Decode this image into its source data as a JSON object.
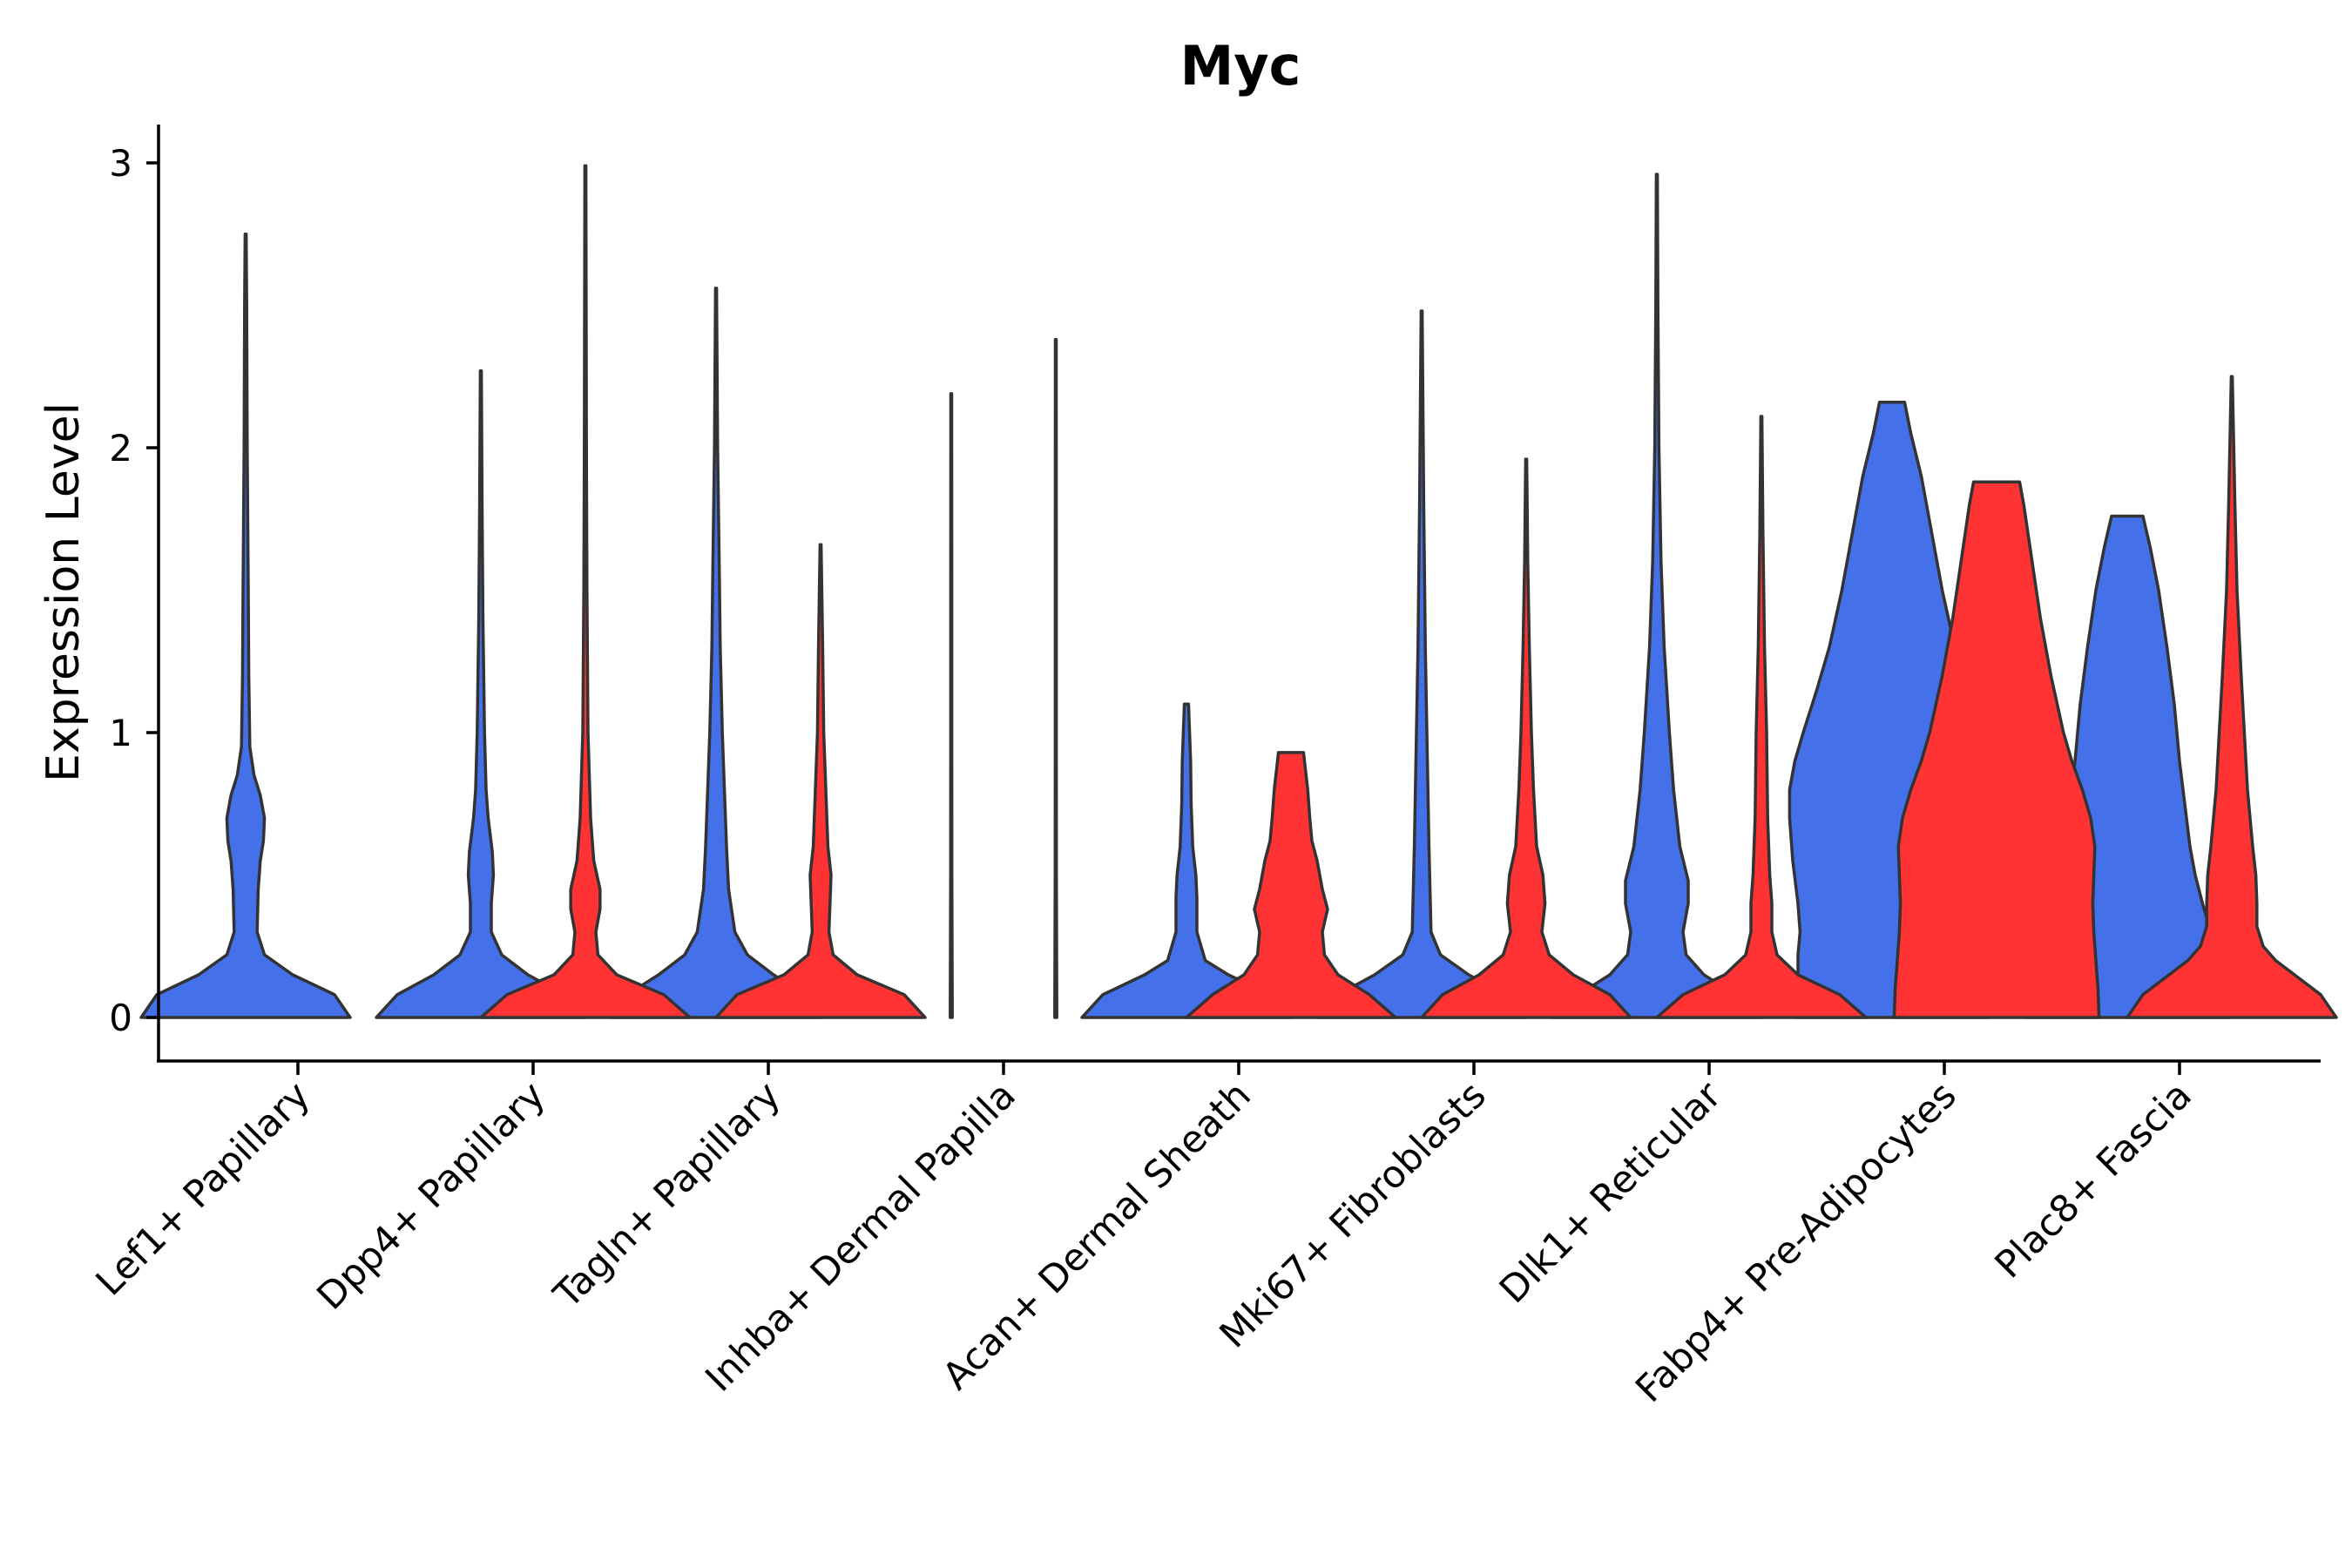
{
  "chart_data": {
    "type": "violin",
    "title": "Myc",
    "xlabel": "",
    "ylabel": "Expression Level",
    "ylim": [
      -0.15,
      3.15
    ],
    "yticks": [
      0,
      1,
      2,
      3
    ],
    "ytick_labels": [
      "0",
      "1",
      "2",
      "3"
    ],
    "legend": "none",
    "grid": false,
    "colors": {
      "group_a": "#4470EA",
      "group_b": "#FF3333",
      "outline": "#333333"
    },
    "categories": [
      "Lef1+ Papillary",
      "Dpp4+ Papillary",
      "Tagln+ Papillary",
      "Inhba+ Dermal Papilla",
      "Acan+ Dermal Sheath",
      "Mki67+ Fibroblasts",
      "Dlk1+ Reticular",
      "Fabp4+ Pre-Adipocytes",
      "Plac8+ Fascia"
    ],
    "series": [
      {
        "name": "group_a",
        "color": "#4470EA",
        "max_values": [
          2.75,
          2.27,
          2.56,
          2.19,
          1.1,
          2.48,
          2.96,
          2.16,
          1.76
        ],
        "profiles": [
          [
            [
              0,
              1.0
            ],
            [
              0.08,
              0.85
            ],
            [
              0.15,
              0.45
            ],
            [
              0.22,
              0.18
            ],
            [
              0.3,
              0.11
            ],
            [
              0.45,
              0.12
            ],
            [
              0.55,
              0.14
            ],
            [
              0.62,
              0.17
            ],
            [
              0.7,
              0.18
            ],
            [
              0.78,
              0.14
            ],
            [
              0.85,
              0.08
            ],
            [
              0.95,
              0.04
            ],
            [
              1.2,
              0.03
            ],
            [
              1.5,
              0.025
            ],
            [
              2.0,
              0.015
            ],
            [
              2.5,
              0.01
            ],
            [
              2.75,
              0.005
            ]
          ],
          [
            [
              0,
              1.0
            ],
            [
              0.08,
              0.8
            ],
            [
              0.15,
              0.45
            ],
            [
              0.22,
              0.2
            ],
            [
              0.3,
              0.1
            ],
            [
              0.4,
              0.1
            ],
            [
              0.5,
              0.12
            ],
            [
              0.58,
              0.11
            ],
            [
              0.7,
              0.07
            ],
            [
              0.8,
              0.05
            ],
            [
              1.0,
              0.035
            ],
            [
              1.4,
              0.02
            ],
            [
              1.8,
              0.012
            ],
            [
              2.27,
              0.005
            ]
          ],
          [
            [
              0,
              1.0
            ],
            [
              0.08,
              0.85
            ],
            [
              0.15,
              0.55
            ],
            [
              0.22,
              0.3
            ],
            [
              0.3,
              0.18
            ],
            [
              0.45,
              0.12
            ],
            [
              0.6,
              0.1
            ],
            [
              0.8,
              0.08
            ],
            [
              1.0,
              0.06
            ],
            [
              1.3,
              0.04
            ],
            [
              1.6,
              0.03
            ],
            [
              2.0,
              0.015
            ],
            [
              2.56,
              0.005
            ]
          ],
          [
            [
              0,
              0.01
            ],
            [
              0.5,
              0.006
            ],
            [
              1.0,
              0.005
            ],
            [
              1.5,
              0.005
            ],
            [
              2.19,
              0.004
            ]
          ],
          [
            [
              0,
              1.0
            ],
            [
              0.08,
              0.8
            ],
            [
              0.15,
              0.4
            ],
            [
              0.2,
              0.18
            ],
            [
              0.3,
              0.1
            ],
            [
              0.42,
              0.1
            ],
            [
              0.5,
              0.09
            ],
            [
              0.6,
              0.06
            ],
            [
              0.75,
              0.045
            ],
            [
              0.9,
              0.04
            ],
            [
              1.1,
              0.02
            ]
          ],
          [
            [
              0,
              1.0
            ],
            [
              0.08,
              0.8
            ],
            [
              0.15,
              0.45
            ],
            [
              0.22,
              0.18
            ],
            [
              0.3,
              0.09
            ],
            [
              0.45,
              0.08
            ],
            [
              0.6,
              0.07
            ],
            [
              0.8,
              0.06
            ],
            [
              1.0,
              0.05
            ],
            [
              1.3,
              0.035
            ],
            [
              1.8,
              0.02
            ],
            [
              2.48,
              0.005
            ]
          ],
          [
            [
              0,
              1.0
            ],
            [
              0.08,
              0.75
            ],
            [
              0.15,
              0.45
            ],
            [
              0.22,
              0.28
            ],
            [
              0.3,
              0.25
            ],
            [
              0.4,
              0.3
            ],
            [
              0.48,
              0.3
            ],
            [
              0.6,
              0.22
            ],
            [
              0.8,
              0.16
            ],
            [
              1.0,
              0.12
            ],
            [
              1.3,
              0.07
            ],
            [
              1.6,
              0.04
            ],
            [
              2.0,
              0.02
            ],
            [
              2.5,
              0.01
            ],
            [
              2.96,
              0.005
            ]
          ],
          [
            [
              0,
              0.92
            ],
            [
              0.1,
              0.9
            ],
            [
              0.22,
              0.9
            ],
            [
              0.3,
              0.88
            ],
            [
              0.4,
              0.9
            ],
            [
              0.55,
              0.95
            ],
            [
              0.7,
              0.98
            ],
            [
              0.8,
              0.98
            ],
            [
              0.9,
              0.93
            ],
            [
              1.0,
              0.85
            ],
            [
              1.15,
              0.72
            ],
            [
              1.3,
              0.6
            ],
            [
              1.5,
              0.48
            ],
            [
              1.7,
              0.38
            ],
            [
              1.9,
              0.28
            ],
            [
              2.05,
              0.18
            ],
            [
              2.16,
              0.12
            ]
          ],
          [
            [
              0,
              0.98
            ],
            [
              0.1,
              0.95
            ],
            [
              0.2,
              0.9
            ],
            [
              0.3,
              0.8
            ],
            [
              0.4,
              0.72
            ],
            [
              0.5,
              0.65
            ],
            [
              0.6,
              0.6
            ],
            [
              0.75,
              0.55
            ],
            [
              0.9,
              0.5
            ],
            [
              1.1,
              0.45
            ],
            [
              1.3,
              0.38
            ],
            [
              1.5,
              0.3
            ],
            [
              1.65,
              0.22
            ],
            [
              1.76,
              0.15
            ]
          ]
        ]
      },
      {
        "name": "group_b",
        "color": "#FF3333",
        "max_values": [
          null,
          2.99,
          1.66,
          2.38,
          0.93,
          1.96,
          2.11,
          1.88,
          2.25
        ],
        "profiles": [
          null,
          [
            [
              0,
              1.0
            ],
            [
              0.08,
              0.75
            ],
            [
              0.15,
              0.3
            ],
            [
              0.22,
              0.12
            ],
            [
              0.3,
              0.1
            ],
            [
              0.38,
              0.14
            ],
            [
              0.45,
              0.14
            ],
            [
              0.55,
              0.08
            ],
            [
              0.7,
              0.05
            ],
            [
              1.0,
              0.025
            ],
            [
              1.5,
              0.015
            ],
            [
              2.0,
              0.01
            ],
            [
              2.99,
              0.005
            ]
          ],
          [
            [
              0,
              1.0
            ],
            [
              0.08,
              0.8
            ],
            [
              0.15,
              0.35
            ],
            [
              0.22,
              0.12
            ],
            [
              0.3,
              0.08
            ],
            [
              0.4,
              0.09
            ],
            [
              0.5,
              0.1
            ],
            [
              0.6,
              0.07
            ],
            [
              0.8,
              0.05
            ],
            [
              1.0,
              0.03
            ],
            [
              1.3,
              0.02
            ],
            [
              1.66,
              0.005
            ]
          ],
          [
            [
              0,
              0.01
            ],
            [
              0.5,
              0.006
            ],
            [
              1.0,
              0.005
            ],
            [
              1.5,
              0.005
            ],
            [
              2.38,
              0.004
            ]
          ],
          [
            [
              0,
              1.0
            ],
            [
              0.08,
              0.75
            ],
            [
              0.15,
              0.45
            ],
            [
              0.22,
              0.32
            ],
            [
              0.3,
              0.3
            ],
            [
              0.38,
              0.35
            ],
            [
              0.45,
              0.3
            ],
            [
              0.55,
              0.25
            ],
            [
              0.62,
              0.2
            ],
            [
              0.7,
              0.18
            ],
            [
              0.8,
              0.16
            ],
            [
              0.93,
              0.12
            ]
          ],
          [
            [
              0,
              1.0
            ],
            [
              0.08,
              0.8
            ],
            [
              0.15,
              0.45
            ],
            [
              0.22,
              0.22
            ],
            [
              0.3,
              0.15
            ],
            [
              0.4,
              0.18
            ],
            [
              0.5,
              0.16
            ],
            [
              0.6,
              0.1
            ],
            [
              0.8,
              0.07
            ],
            [
              1.0,
              0.05
            ],
            [
              1.3,
              0.03
            ],
            [
              1.6,
              0.015
            ],
            [
              1.96,
              0.005
            ]
          ],
          [
            [
              0,
              1.0
            ],
            [
              0.08,
              0.75
            ],
            [
              0.15,
              0.35
            ],
            [
              0.22,
              0.15
            ],
            [
              0.3,
              0.1
            ],
            [
              0.4,
              0.1
            ],
            [
              0.5,
              0.08
            ],
            [
              0.7,
              0.06
            ],
            [
              1.0,
              0.05
            ],
            [
              1.3,
              0.03
            ],
            [
              1.7,
              0.015
            ],
            [
              2.11,
              0.005
            ]
          ],
          [
            [
              0,
              0.98
            ],
            [
              0.1,
              0.97
            ],
            [
              0.2,
              0.95
            ],
            [
              0.3,
              0.93
            ],
            [
              0.4,
              0.92
            ],
            [
              0.5,
              0.93
            ],
            [
              0.6,
              0.94
            ],
            [
              0.7,
              0.9
            ],
            [
              0.8,
              0.82
            ],
            [
              0.9,
              0.72
            ],
            [
              1.0,
              0.64
            ],
            [
              1.2,
              0.52
            ],
            [
              1.4,
              0.42
            ],
            [
              1.6,
              0.34
            ],
            [
              1.8,
              0.26
            ],
            [
              1.88,
              0.22
            ]
          ],
          [
            [
              0,
              1.0
            ],
            [
              0.08,
              0.85
            ],
            [
              0.15,
              0.6
            ],
            [
              0.2,
              0.42
            ],
            [
              0.25,
              0.3
            ],
            [
              0.32,
              0.24
            ],
            [
              0.4,
              0.24
            ],
            [
              0.5,
              0.23
            ],
            [
              0.6,
              0.2
            ],
            [
              0.8,
              0.15
            ],
            [
              1.0,
              0.12
            ],
            [
              1.2,
              0.09
            ],
            [
              1.5,
              0.05
            ],
            [
              1.8,
              0.03
            ],
            [
              2.25,
              0.005
            ]
          ]
        ]
      }
    ]
  }
}
